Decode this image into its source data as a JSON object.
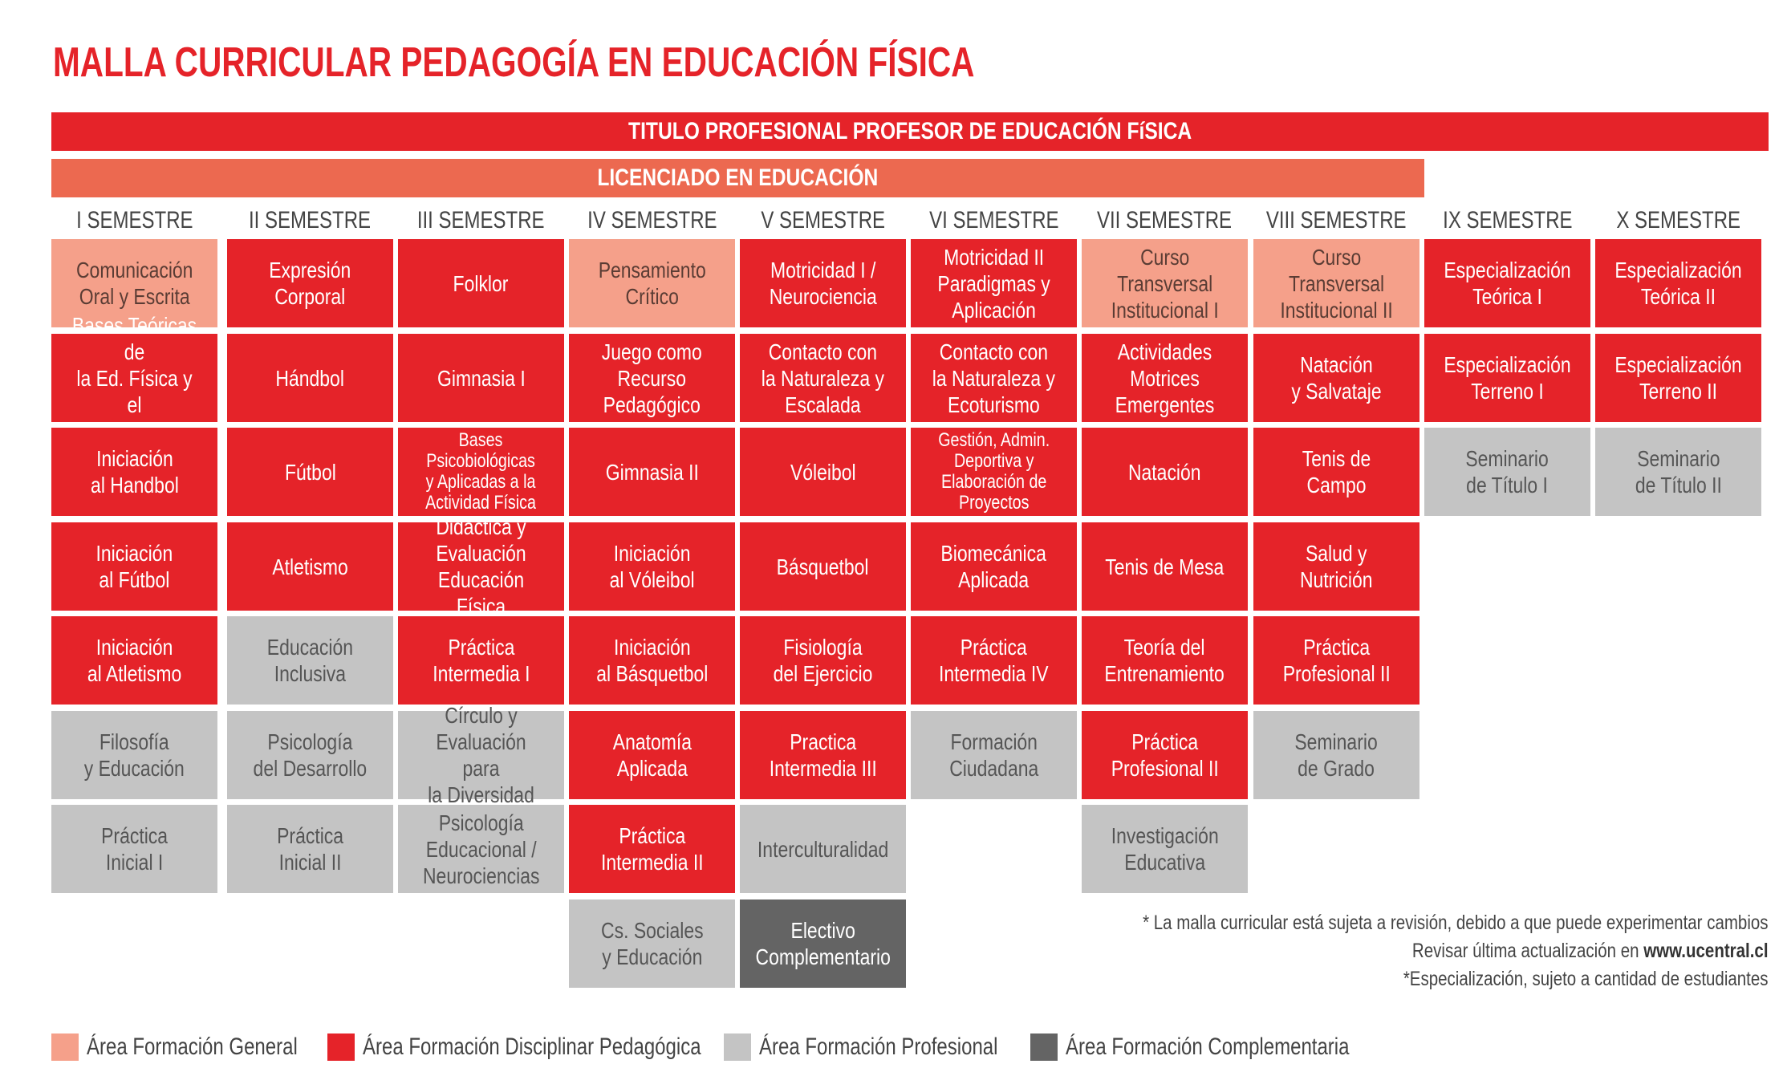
{
  "title": "MALLA CURRICULAR PEDAGOGÍA EN EDUCACIÓN FÍSICA",
  "banner_titulo": "TITULO PROFESIONAL PROFESOR DE EDUCACIÓN FíSICA",
  "banner_licenciado": "LICENCIADO EN EDUCACIÓN",
  "colors": {
    "general": "#f5a08a",
    "disciplinar": "#e52329",
    "profesional": "#c4c4c4",
    "complementaria": "#646464",
    "licenciado_banner": "#ec6950"
  },
  "semesters": [
    {
      "label": "I SEMESTRE",
      "courses": [
        {
          "name": "Comunicación\nOral y Escrita",
          "area": "general"
        },
        {
          "name": "Bases Teóricas de\nla Ed. Física y el\nDeporte",
          "area": "disciplinar"
        },
        {
          "name": "Iniciación\nal Handbol",
          "area": "disciplinar"
        },
        {
          "name": "Iniciación\nal Fútbol",
          "area": "disciplinar"
        },
        {
          "name": "Iniciación\nal Atletismo",
          "area": "disciplinar"
        },
        {
          "name": "Filosofía\ny Educación",
          "area": "profesional"
        },
        {
          "name": "Práctica\nInicial I",
          "area": "profesional"
        }
      ]
    },
    {
      "label": "II SEMESTRE",
      "courses": [
        {
          "name": "Expresión\nCorporal",
          "area": "disciplinar"
        },
        {
          "name": "Hándbol",
          "area": "disciplinar"
        },
        {
          "name": "Fútbol",
          "area": "disciplinar"
        },
        {
          "name": "Atletismo",
          "area": "disciplinar"
        },
        {
          "name": "Educación\nInclusiva",
          "area": "profesional"
        },
        {
          "name": "Psicología\ndel Desarrollo",
          "area": "profesional"
        },
        {
          "name": "Práctica\nInicial II",
          "area": "profesional"
        }
      ]
    },
    {
      "label": "III SEMESTRE",
      "courses": [
        {
          "name": "Folklor",
          "area": "disciplinar"
        },
        {
          "name": "Gimnasia I",
          "area": "disciplinar"
        },
        {
          "name": "Bases\nPsicobiológicas\ny Aplicadas a la\nActividad Física",
          "area": "disciplinar",
          "small": true
        },
        {
          "name": "Didáctica y\nEvaluación\nEducación Física",
          "area": "disciplinar"
        },
        {
          "name": "Práctica\nIntermedia I",
          "area": "disciplinar"
        },
        {
          "name": "Círculo y\nEvaluación para\nla Diversidad",
          "area": "profesional"
        },
        {
          "name": "Psicología\nEducacional /\nNeurociencias",
          "area": "profesional"
        }
      ]
    },
    {
      "label": "IV SEMESTRE",
      "courses": [
        {
          "name": "Pensamiento\nCrítico",
          "area": "general"
        },
        {
          "name": "Juego como\nRecurso\nPedagógico",
          "area": "disciplinar"
        },
        {
          "name": "Gimnasia II",
          "area": "disciplinar"
        },
        {
          "name": "Iniciación\nal Vóleibol",
          "area": "disciplinar"
        },
        {
          "name": "Iniciación\nal Básquetbol",
          "area": "disciplinar"
        },
        {
          "name": "Anatomía\nAplicada",
          "area": "disciplinar"
        },
        {
          "name": "Práctica\nIntermedia II",
          "area": "disciplinar"
        },
        {
          "name": "Cs. Sociales\ny Educación",
          "area": "profesional"
        }
      ]
    },
    {
      "label": "V SEMESTRE",
      "courses": [
        {
          "name": "Motricidad I /\nNeurociencia",
          "area": "disciplinar"
        },
        {
          "name": "Contacto con\nla Naturaleza y\nEscalada",
          "area": "disciplinar"
        },
        {
          "name": "Vóleibol",
          "area": "disciplinar"
        },
        {
          "name": "Básquetbol",
          "area": "disciplinar"
        },
        {
          "name": "Fisiología\ndel Ejercicio",
          "area": "disciplinar"
        },
        {
          "name": "Practica\nIntermedia III",
          "area": "disciplinar"
        },
        {
          "name": "Interculturalidad",
          "area": "profesional"
        },
        {
          "name": "Electivo\nComplementario",
          "area": "complementaria"
        }
      ]
    },
    {
      "label": "VI SEMESTRE",
      "courses": [
        {
          "name": "Motricidad II\nParadigmas y\nAplicación",
          "area": "disciplinar"
        },
        {
          "name": "Contacto con\nla Naturaleza y\nEcoturismo",
          "area": "disciplinar"
        },
        {
          "name": "Gestión, Admin.\nDeportiva y\nElaboración de\nProyectos",
          "area": "disciplinar",
          "small": true
        },
        {
          "name": "Biomecánica\nAplicada",
          "area": "disciplinar"
        },
        {
          "name": "Práctica\nIntermedia IV",
          "area": "disciplinar"
        },
        {
          "name": "Formación\nCiudadana",
          "area": "profesional"
        }
      ]
    },
    {
      "label": "VII SEMESTRE",
      "courses": [
        {
          "name": "Curso\nTransversal\nInstitucional I",
          "area": "general"
        },
        {
          "name": "Actividades\nMotrices\nEmergentes",
          "area": "disciplinar"
        },
        {
          "name": "Natación",
          "area": "disciplinar"
        },
        {
          "name": "Tenis de Mesa",
          "area": "disciplinar"
        },
        {
          "name": "Teoría del\nEntrenamiento",
          "area": "disciplinar"
        },
        {
          "name": "Práctica\nProfesional II",
          "area": "disciplinar"
        },
        {
          "name": "Investigación\nEducativa",
          "area": "profesional"
        }
      ]
    },
    {
      "label": "VIII SEMESTRE",
      "courses": [
        {
          "name": "Curso\nTransversal\nInstitucional II",
          "area": "general"
        },
        {
          "name": "Natación\ny Salvataje",
          "area": "disciplinar"
        },
        {
          "name": "Tenis de Campo",
          "area": "disciplinar"
        },
        {
          "name": "Salud y\nNutrición",
          "area": "disciplinar"
        },
        {
          "name": "Práctica\nProfesional II",
          "area": "disciplinar"
        },
        {
          "name": "Seminario\nde Grado",
          "area": "profesional"
        }
      ]
    },
    {
      "label": "IX SEMESTRE",
      "courses": [
        {
          "name": "Especialización\nTeórica I",
          "area": "disciplinar"
        },
        {
          "name": "Especialización\nTerreno I",
          "area": "disciplinar"
        },
        {
          "name": "Seminario\nde Título I",
          "area": "profesional"
        }
      ]
    },
    {
      "label": "X SEMESTRE",
      "courses": [
        {
          "name": "Especialización\nTeórica II",
          "area": "disciplinar"
        },
        {
          "name": "Especialización\nTerreno II",
          "area": "disciplinar"
        },
        {
          "name": "Seminario\nde Título II",
          "area": "profesional"
        }
      ]
    }
  ],
  "notes": {
    "line1": "* La malla curricular está sujeta a revisión, debido a que puede experimentar cambios",
    "line2_prefix": "Revisar última actualización en",
    "line2_url": "www.ucentral.cl",
    "line3": "*Especialización, sujeto a cantidad de estudiantes"
  },
  "legend": [
    {
      "label": "Área Formación General",
      "area": "general"
    },
    {
      "label": "Área Formación Disciplinar Pedagógica",
      "area": "disciplinar"
    },
    {
      "label": "Área Formación Profesional",
      "area": "profesional"
    },
    {
      "label": "Área Formación Complementaria",
      "area": "complementaria"
    }
  ]
}
